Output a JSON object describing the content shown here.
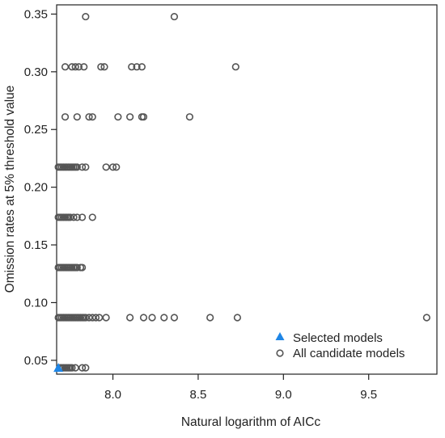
{
  "chart_data": {
    "type": "scatter",
    "title": "",
    "xlabel": "Natural logarithm of AICc",
    "ylabel": "Omission rates at 5% threshold value",
    "xlim": [
      7.67,
      9.9
    ],
    "ylim": [
      0.038,
      0.358
    ],
    "xticks": [
      8.0,
      8.5,
      9.0,
      9.5
    ],
    "xtick_labels": [
      "8.0",
      "8.5",
      "9.0",
      "9.5"
    ],
    "yticks": [
      0.05,
      0.1,
      0.15,
      0.2,
      0.25,
      0.3,
      0.35
    ],
    "ytick_labels": [
      "0.05",
      "0.10",
      "0.15",
      "0.20",
      "0.25",
      "0.30",
      "0.35"
    ],
    "grid": false,
    "legend_position": "bottom-right",
    "series": [
      {
        "name": "Selected models",
        "marker": "filled-triangle",
        "color": "#1f86e6",
        "points": [
          [
            7.68,
            0.0435
          ]
        ]
      },
      {
        "name": "All candidate models",
        "marker": "open-circle",
        "color": "#555555",
        "points": [
          [
            7.69,
            0.0435
          ],
          [
            7.7,
            0.0435
          ],
          [
            7.71,
            0.0435
          ],
          [
            7.72,
            0.0435
          ],
          [
            7.73,
            0.0435
          ],
          [
            7.74,
            0.0435
          ],
          [
            7.75,
            0.0435
          ],
          [
            7.76,
            0.0435
          ],
          [
            7.78,
            0.0435
          ],
          [
            7.82,
            0.0435
          ],
          [
            7.84,
            0.0435
          ],
          [
            7.68,
            0.087
          ],
          [
            7.69,
            0.087
          ],
          [
            7.7,
            0.087
          ],
          [
            7.71,
            0.087
          ],
          [
            7.72,
            0.087
          ],
          [
            7.73,
            0.087
          ],
          [
            7.74,
            0.087
          ],
          [
            7.75,
            0.087
          ],
          [
            7.76,
            0.087
          ],
          [
            7.77,
            0.087
          ],
          [
            7.78,
            0.087
          ],
          [
            7.79,
            0.087
          ],
          [
            7.8,
            0.087
          ],
          [
            7.81,
            0.087
          ],
          [
            7.82,
            0.087
          ],
          [
            7.83,
            0.087
          ],
          [
            7.84,
            0.087
          ],
          [
            7.86,
            0.087
          ],
          [
            7.88,
            0.087
          ],
          [
            7.9,
            0.087
          ],
          [
            7.92,
            0.087
          ],
          [
            7.96,
            0.087
          ],
          [
            8.1,
            0.087
          ],
          [
            8.18,
            0.087
          ],
          [
            8.23,
            0.087
          ],
          [
            8.3,
            0.087
          ],
          [
            8.36,
            0.087
          ],
          [
            8.57,
            0.087
          ],
          [
            8.73,
            0.087
          ],
          [
            9.84,
            0.087
          ],
          [
            7.68,
            0.1304
          ],
          [
            7.69,
            0.1304
          ],
          [
            7.7,
            0.1304
          ],
          [
            7.71,
            0.1304
          ],
          [
            7.72,
            0.1304
          ],
          [
            7.73,
            0.1304
          ],
          [
            7.74,
            0.1304
          ],
          [
            7.75,
            0.1304
          ],
          [
            7.76,
            0.1304
          ],
          [
            7.77,
            0.1304
          ],
          [
            7.78,
            0.1304
          ],
          [
            7.79,
            0.1304
          ],
          [
            7.81,
            0.1304
          ],
          [
            7.82,
            0.1304
          ],
          [
            7.68,
            0.1739
          ],
          [
            7.69,
            0.1739
          ],
          [
            7.7,
            0.1739
          ],
          [
            7.71,
            0.1739
          ],
          [
            7.72,
            0.1739
          ],
          [
            7.73,
            0.1739
          ],
          [
            7.74,
            0.1739
          ],
          [
            7.75,
            0.1739
          ],
          [
            7.77,
            0.1739
          ],
          [
            7.79,
            0.1739
          ],
          [
            7.82,
            0.1739
          ],
          [
            7.88,
            0.1739
          ],
          [
            7.68,
            0.2174
          ],
          [
            7.69,
            0.2174
          ],
          [
            7.7,
            0.2174
          ],
          [
            7.71,
            0.2174
          ],
          [
            7.72,
            0.2174
          ],
          [
            7.73,
            0.2174
          ],
          [
            7.74,
            0.2174
          ],
          [
            7.75,
            0.2174
          ],
          [
            7.76,
            0.2174
          ],
          [
            7.77,
            0.2174
          ],
          [
            7.78,
            0.2174
          ],
          [
            7.79,
            0.2174
          ],
          [
            7.82,
            0.2174
          ],
          [
            7.84,
            0.2174
          ],
          [
            7.96,
            0.2174
          ],
          [
            8.0,
            0.2174
          ],
          [
            8.02,
            0.2174
          ],
          [
            7.72,
            0.2609
          ],
          [
            7.79,
            0.2609
          ],
          [
            7.86,
            0.2609
          ],
          [
            7.88,
            0.2609
          ],
          [
            8.03,
            0.2609
          ],
          [
            8.1,
            0.2609
          ],
          [
            8.17,
            0.2609
          ],
          [
            8.18,
            0.2609
          ],
          [
            8.45,
            0.2609
          ],
          [
            7.72,
            0.3043
          ],
          [
            7.76,
            0.3043
          ],
          [
            7.78,
            0.3043
          ],
          [
            7.8,
            0.3043
          ],
          [
            7.83,
            0.3043
          ],
          [
            7.93,
            0.3043
          ],
          [
            7.95,
            0.3043
          ],
          [
            8.11,
            0.3043
          ],
          [
            8.14,
            0.3043
          ],
          [
            8.17,
            0.3043
          ],
          [
            8.72,
            0.3043
          ],
          [
            7.84,
            0.3478
          ],
          [
            8.36,
            0.3478
          ]
        ]
      }
    ]
  }
}
